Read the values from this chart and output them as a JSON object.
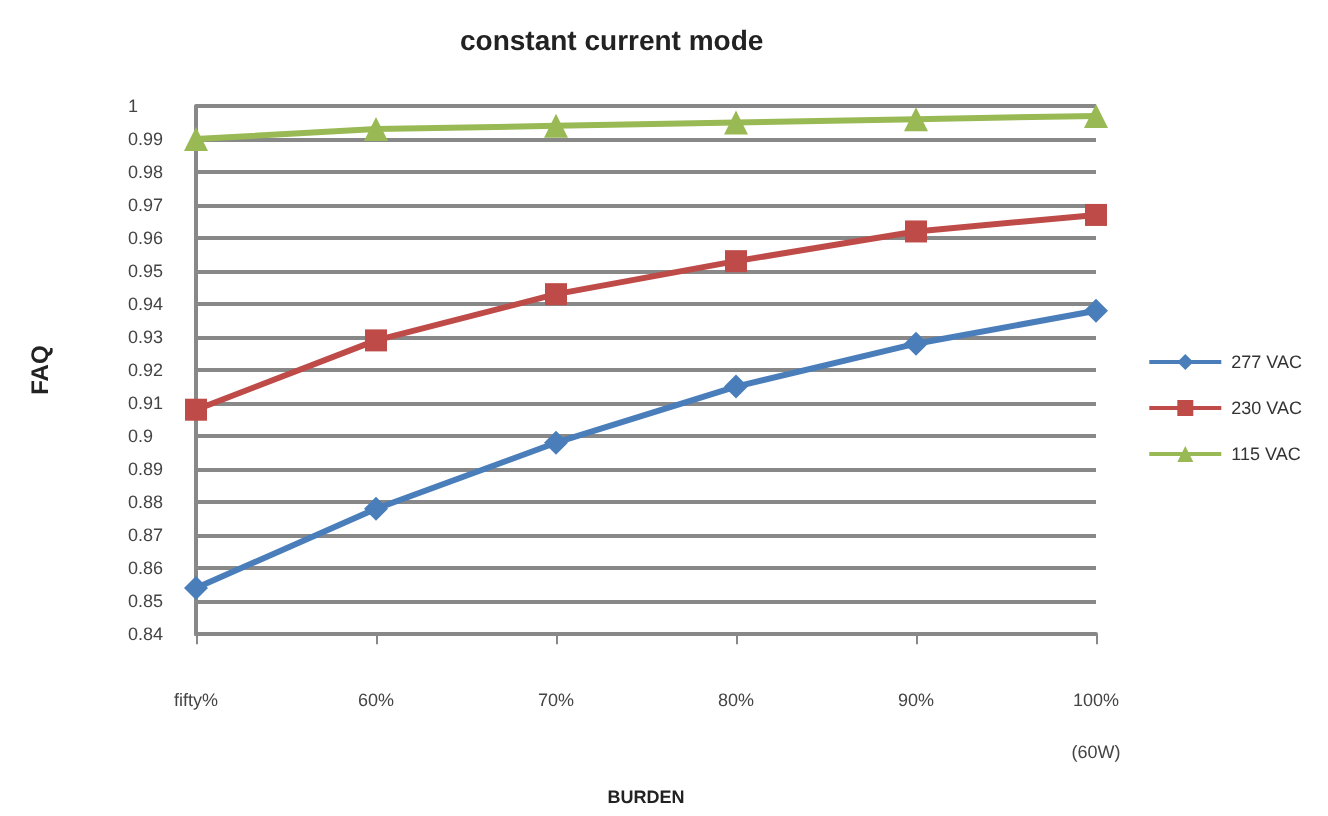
{
  "chart_data": {
    "type": "line",
    "title": "constant current mode",
    "xlabel": "BURDEN",
    "ylabel": "FAQ",
    "categories": [
      "fifty%",
      "60%",
      "70%",
      "80%",
      "90%",
      "100%\n(60W)"
    ],
    "series": [
      {
        "name": "277 VAC",
        "color": "#4a7ebb",
        "marker": "diamond",
        "values": [
          0.854,
          0.878,
          0.898,
          0.915,
          0.928,
          0.938
        ]
      },
      {
        "name": "230 VAC",
        "color": "#be4b48",
        "marker": "square",
        "values": [
          0.908,
          0.929,
          0.943,
          0.953,
          0.962,
          0.967
        ]
      },
      {
        "name": "115 VAC",
        "color": "#98b954",
        "marker": "triangle",
        "values": [
          0.99,
          0.993,
          0.994,
          0.995,
          0.996,
          0.997
        ]
      }
    ],
    "ylim": [
      0.84,
      1
    ],
    "yticks": [
      0.84,
      0.85,
      0.86,
      0.87,
      0.88,
      0.89,
      0.9,
      0.91,
      0.92,
      0.93,
      0.94,
      0.95,
      0.96,
      0.97,
      0.98,
      0.99,
      1
    ],
    "grid": "y",
    "legend": "right"
  }
}
